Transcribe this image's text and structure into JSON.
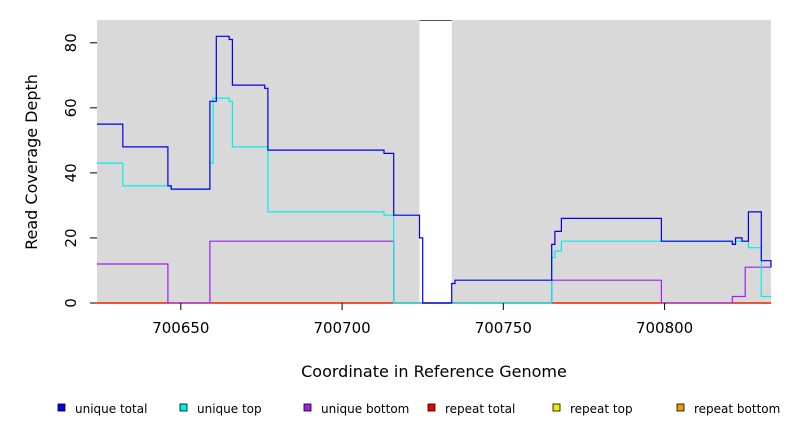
{
  "chart_data": {
    "type": "line",
    "xlabel": "Coordinate in Reference Genome",
    "ylabel": "Read Coverage Depth",
    "xlim": [
      700624,
      700833
    ],
    "ylim": [
      0,
      87
    ],
    "x_ticks": [
      700650,
      700700,
      700750,
      700800
    ],
    "y_ticks": [
      0,
      20,
      40,
      60,
      80
    ],
    "background_color": "#d9d9d9",
    "gap_region": [
      700724,
      700734
    ],
    "legend_position": "bottom",
    "series": [
      {
        "name": "unique total",
        "color": "#0000ee",
        "points": [
          [
            700624,
            55
          ],
          [
            700632,
            55
          ],
          [
            700632,
            48
          ],
          [
            700646,
            48
          ],
          [
            700646,
            36
          ],
          [
            700647,
            36
          ],
          [
            700647,
            35
          ],
          [
            700659,
            35
          ],
          [
            700659,
            62
          ],
          [
            700661,
            62
          ],
          [
            700661,
            82
          ],
          [
            700665,
            82
          ],
          [
            700665,
            81
          ],
          [
            700666,
            81
          ],
          [
            700666,
            67
          ],
          [
            700676,
            67
          ],
          [
            700676,
            66
          ],
          [
            700677,
            66
          ],
          [
            700677,
            47
          ],
          [
            700713,
            47
          ],
          [
            700713,
            46
          ],
          [
            700716,
            46
          ],
          [
            700716,
            27
          ],
          [
            700724,
            27
          ],
          [
            700724,
            20
          ],
          [
            700725,
            20
          ],
          [
            700725,
            0
          ],
          [
            700734,
            0
          ],
          [
            700734,
            6
          ],
          [
            700735,
            6
          ],
          [
            700735,
            7
          ],
          [
            700765,
            7
          ],
          [
            700765,
            18
          ],
          [
            700766,
            18
          ],
          [
            700766,
            22
          ],
          [
            700768,
            22
          ],
          [
            700768,
            26
          ],
          [
            700799,
            26
          ],
          [
            700799,
            19
          ],
          [
            700821,
            19
          ],
          [
            700821,
            18
          ],
          [
            700822,
            18
          ],
          [
            700822,
            20
          ],
          [
            700824,
            20
          ],
          [
            700824,
            19
          ],
          [
            700826,
            19
          ],
          [
            700826,
            28
          ],
          [
            700830,
            28
          ],
          [
            700830,
            13
          ],
          [
            700833,
            13
          ],
          [
            700833,
            11
          ]
        ]
      },
      {
        "name": "unique top",
        "color": "#00eeee",
        "points": [
          [
            700624,
            43
          ],
          [
            700632,
            43
          ],
          [
            700632,
            36
          ],
          [
            700647,
            36
          ],
          [
            700647,
            35
          ],
          [
            700659,
            35
          ],
          [
            700659,
            43
          ],
          [
            700660,
            43
          ],
          [
            700660,
            63
          ],
          [
            700665,
            63
          ],
          [
            700665,
            62
          ],
          [
            700666,
            62
          ],
          [
            700666,
            48
          ],
          [
            700677,
            48
          ],
          [
            700677,
            28
          ],
          [
            700713,
            28
          ],
          [
            700713,
            27
          ],
          [
            700716,
            27
          ],
          [
            700716,
            0
          ],
          [
            700765,
            0
          ],
          [
            700765,
            14
          ],
          [
            700766,
            14
          ],
          [
            700766,
            16
          ],
          [
            700768,
            16
          ],
          [
            700768,
            19
          ],
          [
            700821,
            19
          ],
          [
            700821,
            18
          ],
          [
            700822,
            18
          ],
          [
            700822,
            19
          ],
          [
            700826,
            19
          ],
          [
            700826,
            17
          ],
          [
            700830,
            17
          ],
          [
            700830,
            2
          ],
          [
            700833,
            2
          ]
        ]
      },
      {
        "name": "unique bottom",
        "color": "#a020f0",
        "points": [
          [
            700624,
            12
          ],
          [
            700646,
            12
          ],
          [
            700646,
            0
          ],
          [
            700659,
            0
          ],
          [
            700659,
            19
          ],
          [
            700716,
            19
          ],
          [
            700716,
            0
          ],
          [
            700765,
            0
          ],
          [
            700765,
            7
          ],
          [
            700799,
            7
          ],
          [
            700799,
            0
          ],
          [
            700821,
            0
          ],
          [
            700821,
            2
          ],
          [
            700825,
            2
          ],
          [
            700825,
            11
          ],
          [
            700833,
            11
          ]
        ]
      },
      {
        "name": "repeat total",
        "color": "#ee0000",
        "points": [
          [
            700624,
            0
          ],
          [
            700833,
            0
          ]
        ]
      },
      {
        "name": "repeat top",
        "color": "#eeee00",
        "points": [
          [
            700624,
            0
          ],
          [
            700833,
            0
          ]
        ]
      },
      {
        "name": "repeat bottom",
        "color": "#ee9a00",
        "points": [
          [
            700624,
            0
          ],
          [
            700833,
            0
          ]
        ]
      }
    ]
  }
}
